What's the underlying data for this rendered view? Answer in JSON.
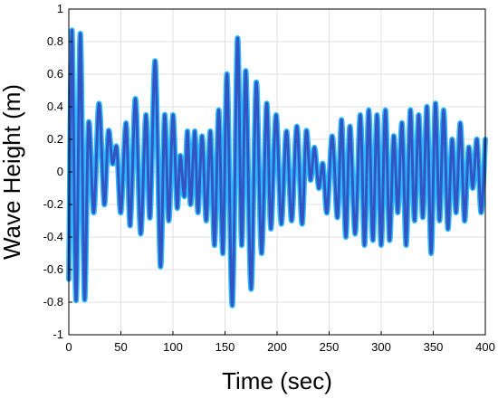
{
  "chart_data": {
    "type": "line",
    "title": "",
    "xlabel": "Time (sec)",
    "ylabel": "Wave Height (m)",
    "xlim": [
      0,
      400
    ],
    "ylim": [
      -1,
      1
    ],
    "xticks": [
      "0",
      "50",
      "100",
      "150",
      "200",
      "250",
      "300",
      "350",
      "400"
    ],
    "yticks": [
      "1",
      "0.8",
      "0.6",
      "0.4",
      "0.2",
      "0",
      "-0.2",
      "-0.4",
      "-0.6",
      "-0.8",
      "-1"
    ],
    "grid": true,
    "colors": {
      "glow": "#1fb6ff",
      "line": "#3355c4",
      "grid": "#e0e0e0",
      "axis": "#000000"
    },
    "series": [
      {
        "name": "",
        "x": [
          0,
          3,
          7,
          11,
          15,
          19,
          24,
          29,
          34,
          38,
          42,
          46,
          50,
          55,
          59,
          64,
          69,
          74,
          78,
          83,
          88,
          92,
          96,
          100,
          104,
          107,
          111,
          114,
          117,
          121,
          124,
          128,
          132,
          136,
          140,
          144,
          148,
          152,
          157,
          162,
          166,
          170,
          175,
          180,
          185,
          190,
          194,
          199,
          204,
          209,
          214,
          219,
          224,
          228,
          232,
          236,
          240,
          244,
          248,
          253,
          258,
          262,
          266,
          270,
          275,
          280,
          284,
          288,
          292,
          296,
          300,
          304,
          308,
          312,
          316,
          320,
          324,
          328,
          332,
          336,
          340,
          344,
          348,
          352,
          356,
          360,
          364,
          368,
          372,
          376,
          380,
          384,
          388,
          392,
          396,
          400
        ],
        "y": [
          -0.66,
          0.87,
          -0.79,
          0.85,
          -0.78,
          0.3,
          -0.25,
          0.42,
          -0.2,
          0.25,
          0.05,
          0.15,
          -0.25,
          0.3,
          -0.33,
          0.45,
          -0.38,
          0.35,
          -0.28,
          0.68,
          -0.58,
          0.35,
          -0.3,
          0.35,
          -0.22,
          0.1,
          -0.15,
          0.25,
          -0.2,
          0.25,
          -0.25,
          0.22,
          -0.3,
          0.25,
          -0.45,
          0.38,
          -0.5,
          0.6,
          -0.82,
          0.82,
          -0.45,
          0.62,
          -0.72,
          0.55,
          -0.5,
          0.42,
          -0.35,
          0.35,
          -0.32,
          0.25,
          -0.3,
          0.28,
          -0.32,
          0.25,
          -0.05,
          0.15,
          -0.1,
          0.05,
          -0.25,
          0.22,
          -0.28,
          0.32,
          -0.4,
          0.28,
          -0.38,
          0.35,
          -0.45,
          0.38,
          -0.42,
          0.35,
          -0.45,
          0.38,
          -0.42,
          0.22,
          -0.25,
          0.3,
          -0.45,
          0.38,
          -0.3,
          0.35,
          -0.28,
          0.4,
          -0.5,
          0.42,
          -0.3,
          0.38,
          -0.35,
          0.2,
          -0.25,
          0.3,
          -0.3,
          0.15,
          -0.1,
          0.2,
          -0.25,
          0.2
        ]
      }
    ]
  }
}
